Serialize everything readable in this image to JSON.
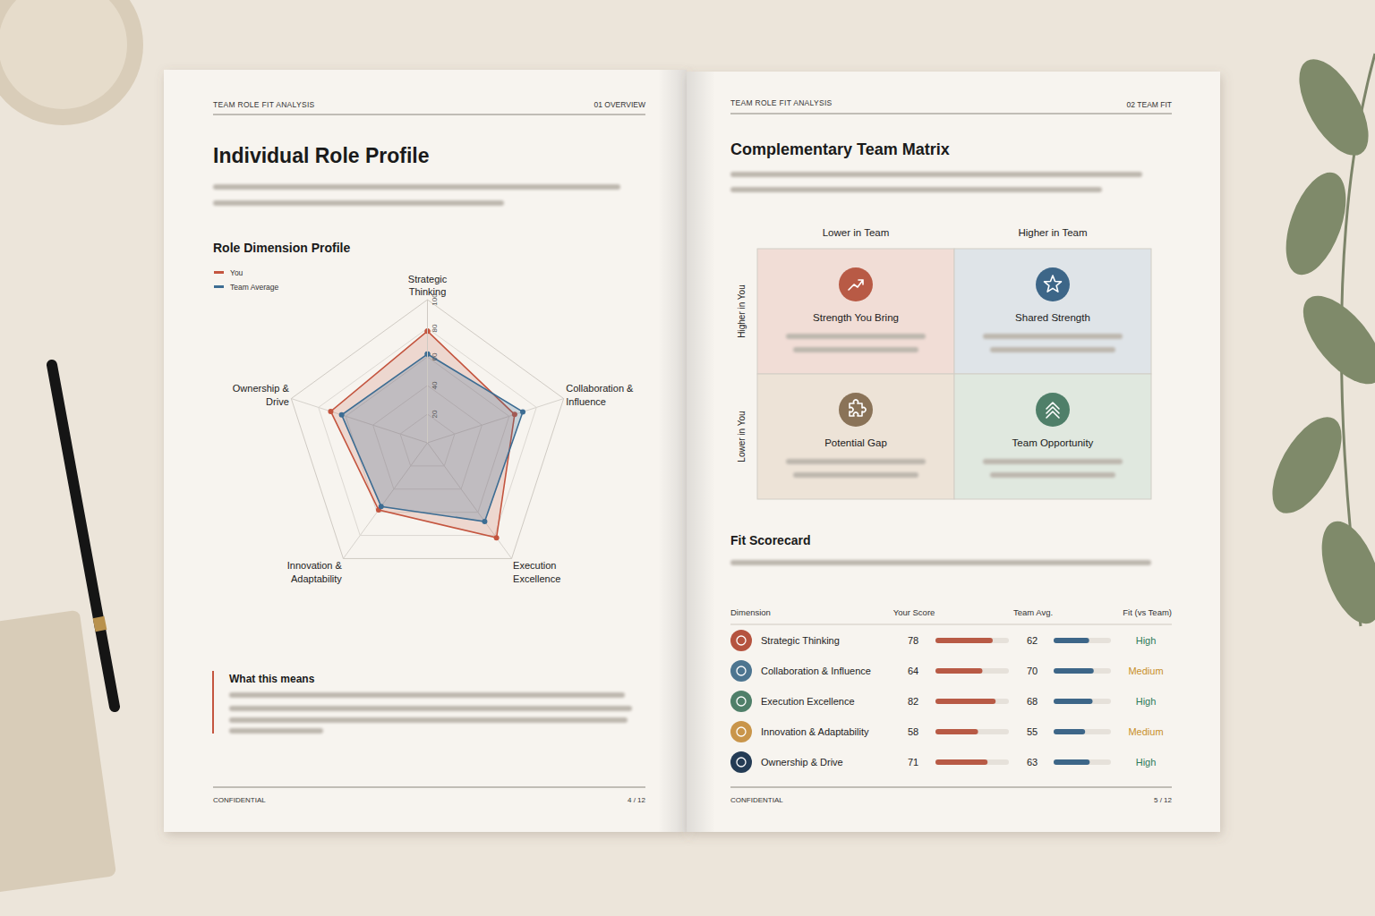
{
  "chart_data": {
    "type": "radar",
    "title": "Role Dimension Profile",
    "categories": [
      "Strategic Thinking",
      "Collaboration & Influence",
      "Execution Excellence",
      "Innovation & Adaptability",
      "Ownership & Drive"
    ],
    "series": [
      {
        "name": "You",
        "color": "#c4553f",
        "values": [
          78,
          64,
          82,
          58,
          71
        ]
      },
      {
        "name": "Team Average",
        "color": "#3d6d93",
        "values": [
          62,
          70,
          68,
          55,
          63
        ]
      }
    ],
    "ylim": [
      0,
      100
    ],
    "yticks": [
      20,
      40,
      60,
      80,
      100
    ],
    "grid": true,
    "legend": "top-left"
  },
  "left_page": {
    "header": {
      "left": "TEAM ROLE FIT ANALYSIS",
      "right": "01 OVERVIEW"
    },
    "title": "Individual Role Profile",
    "callout": {
      "title": "What this means"
    },
    "footer": {
      "left": "CONFIDENTIAL",
      "right": "4 / 12"
    }
  },
  "right_page": {
    "header": {
      "left": "TEAM ROLE FIT ANALYSIS",
      "right": "02 TEAM FIT"
    },
    "matrix": {
      "title": "Complementary Team Matrix",
      "column_labels": [
        "Lower in Team",
        "Higher in Team"
      ],
      "row_labels": [
        "Higher in You",
        "Lower in You"
      ],
      "cells": [
        {
          "label": "Strength You Bring",
          "color": "#b85a45",
          "background": "#f1ddd6"
        },
        {
          "label": "Shared Strength",
          "color": "#3d6688",
          "background": "#dfe4e8"
        },
        {
          "label": "Potential Gap",
          "color": "#8a7358",
          "background": "#ede3d7"
        },
        {
          "label": "Team Opportunity",
          "color": "#4f7f69",
          "background": "#e0e8df"
        }
      ]
    },
    "scorecard": {
      "title": "Fit Scorecard",
      "columns": [
        "Dimension",
        "Your Score",
        "Team Avg.",
        "Fit (vs Team)"
      ],
      "score_range": [
        0,
        100
      ],
      "your_color": "#b85a45",
      "team_color": "#3d6688",
      "fit_colors": {
        "High": "#2e7a5a",
        "Medium": "#c8902a"
      },
      "rows": [
        {
          "dimension": "Strategic Thinking",
          "your_score": 78,
          "team_avg": 62,
          "fit": "High",
          "icon_color": "#b5533f"
        },
        {
          "dimension": "Collaboration & Influence",
          "your_score": 64,
          "team_avg": 70,
          "fit": "Medium",
          "icon_color": "#4d7590"
        },
        {
          "dimension": "Execution Excellence",
          "your_score": 82,
          "team_avg": 68,
          "fit": "High",
          "icon_color": "#4f7f69"
        },
        {
          "dimension": "Innovation & Adaptability",
          "your_score": 58,
          "team_avg": 55,
          "fit": "Medium",
          "icon_color": "#c9954a"
        },
        {
          "dimension": "Ownership & Drive",
          "your_score": 71,
          "team_avg": 63,
          "fit": "High",
          "icon_color": "#243c55"
        }
      ]
    },
    "footer": {
      "left": "CONFIDENTIAL",
      "right": "5 / 12"
    }
  }
}
